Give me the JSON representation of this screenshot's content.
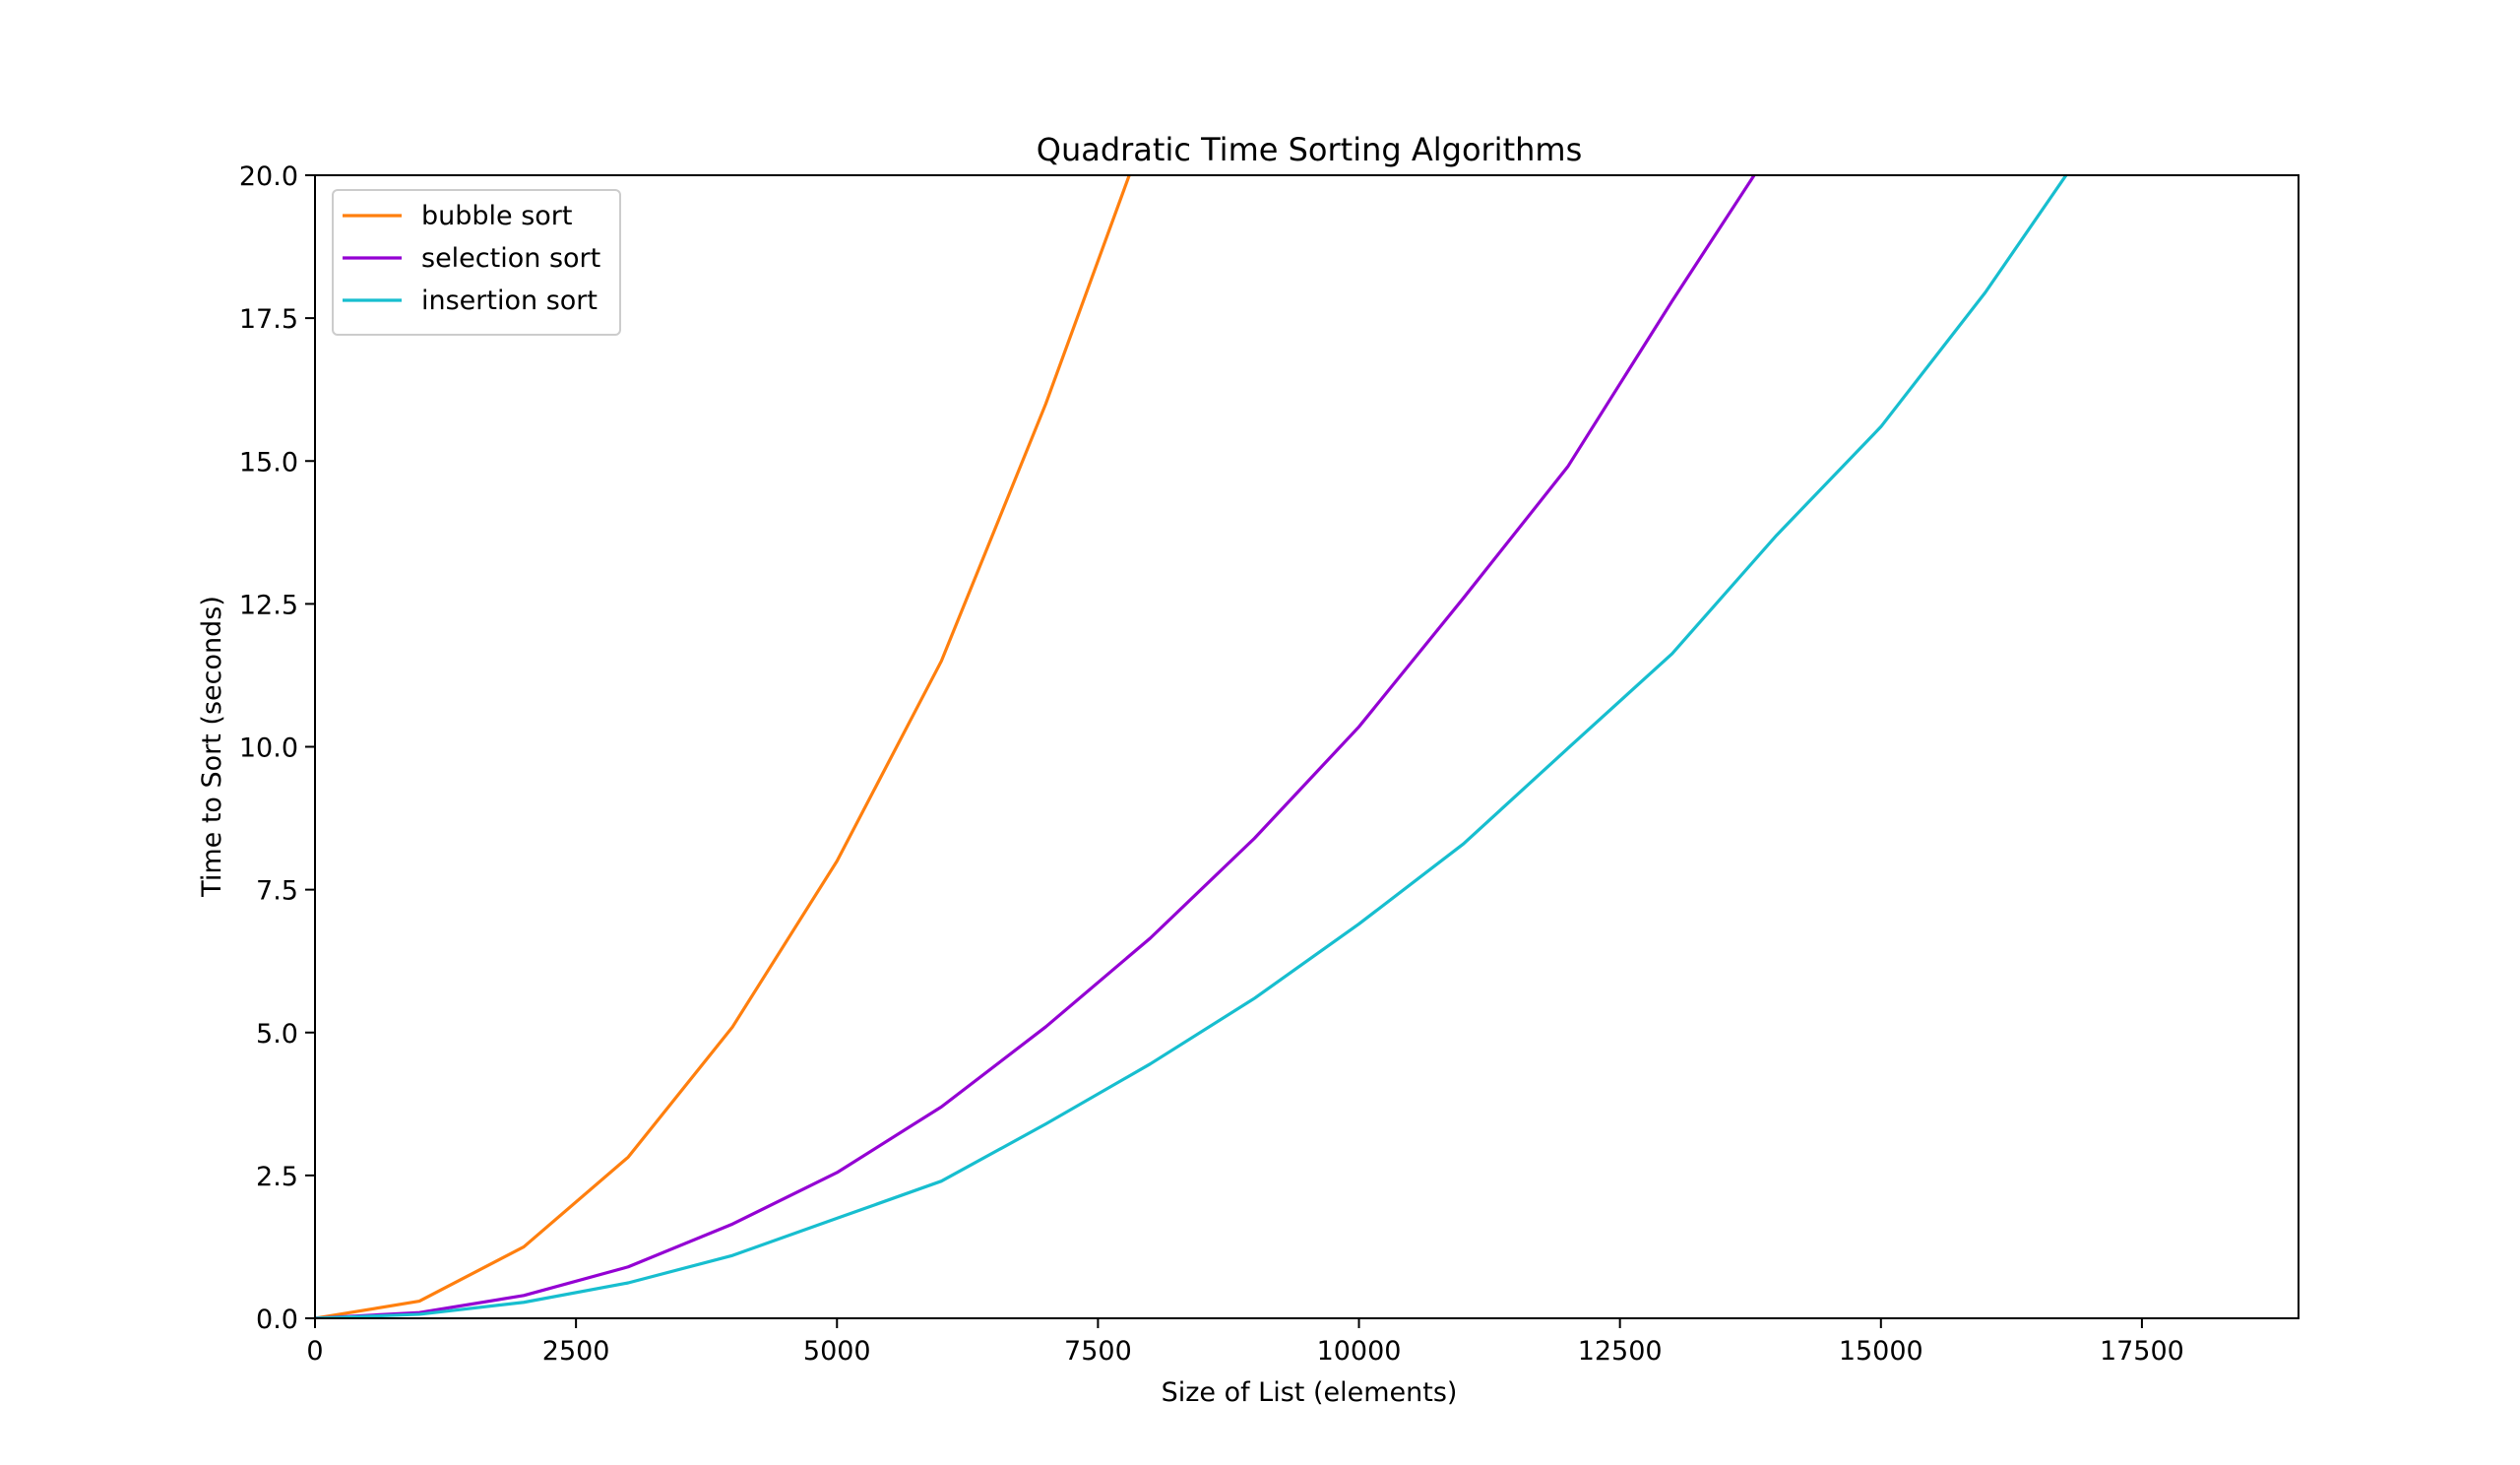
{
  "chart_data": {
    "type": "line",
    "title": "Quadratic Time Sorting Algorithms",
    "xlabel": "Size of List (elements)",
    "ylabel": "Time to Sort (seconds)",
    "xlim": [
      0,
      19000
    ],
    "ylim": [
      0,
      20
    ],
    "xticks": [
      0,
      2500,
      5000,
      7500,
      10000,
      12500,
      15000,
      17500
    ],
    "xtick_labels": [
      "0",
      "2500",
      "5000",
      "7500",
      "10000",
      "12500",
      "15000",
      "17500"
    ],
    "yticks": [
      0,
      2.5,
      5,
      7.5,
      10,
      12.5,
      15,
      17.5,
      20
    ],
    "ytick_labels": [
      "0.0",
      "2.5",
      "5.0",
      "7.5",
      "10.0",
      "12.5",
      "15.0",
      "17.5",
      "20.0"
    ],
    "grid": false,
    "legend_position": "top-left",
    "series": [
      {
        "name": "bubble sort",
        "color": "#ff7f0e",
        "x": [
          0,
          1000,
          2000,
          3000,
          4000,
          5000,
          6000,
          7000,
          8000
        ],
        "y": [
          0.0,
          0.3,
          1.25,
          2.82,
          5.1,
          8.0,
          11.5,
          16.0,
          21.0
        ]
      },
      {
        "name": "selection sort",
        "color": "#9400d3",
        "x": [
          0,
          1000,
          2000,
          3000,
          4000,
          5000,
          6000,
          7000,
          8000,
          9000,
          10000,
          11000,
          12000,
          13000,
          14000
        ],
        "y": [
          0.0,
          0.1,
          0.4,
          0.9,
          1.65,
          2.55,
          3.7,
          5.1,
          6.65,
          8.4,
          10.35,
          12.6,
          14.9,
          17.8,
          20.6
        ]
      },
      {
        "name": "insertion sort",
        "color": "#17becf",
        "x": [
          0,
          1000,
          2000,
          3000,
          4000,
          5000,
          6000,
          7000,
          8000,
          9000,
          10000,
          11000,
          12000,
          13000,
          14000,
          15000,
          16000,
          17000
        ],
        "y": [
          0.0,
          0.07,
          0.28,
          0.62,
          1.1,
          1.75,
          2.4,
          3.4,
          4.45,
          5.6,
          6.9,
          8.3,
          9.97,
          11.63,
          13.7,
          15.6,
          17.95,
          20.6
        ]
      }
    ]
  }
}
